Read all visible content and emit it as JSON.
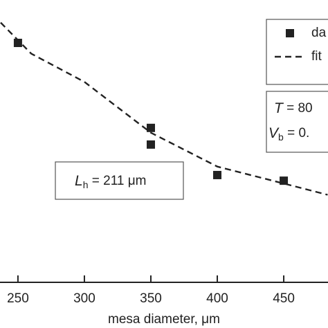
{
  "chart_data": {
    "type": "scatter",
    "x_label": "mesa diameter, μm",
    "xlim": [
      236.5,
      483.3
    ],
    "xticks": [
      250,
      300,
      350,
      400,
      450
    ],
    "ylim": [
      0,
      100
    ],
    "series": [
      {
        "name": "da",
        "color": "#222222",
        "marker": "square",
        "x": [
          250,
          350,
          350,
          400,
          450
        ],
        "values": [
          84.8,
          54.7,
          48.8,
          38.0,
          36.0
        ]
      },
      {
        "name": "fit",
        "color": "#222222",
        "line": "dashed",
        "x": [
          237,
          260,
          300,
          350,
          400,
          450,
          483
        ],
        "values": [
          92,
          81,
          71,
          53,
          41,
          35,
          31
        ]
      }
    ],
    "annotations": [
      {
        "symbol": "T",
        "text": " = 80"
      },
      {
        "symbol": "V",
        "subscript": "b",
        "text": " = 0."
      },
      {
        "symbol": "L",
        "subscript": "h",
        "text": " = 211 μm"
      }
    ]
  }
}
